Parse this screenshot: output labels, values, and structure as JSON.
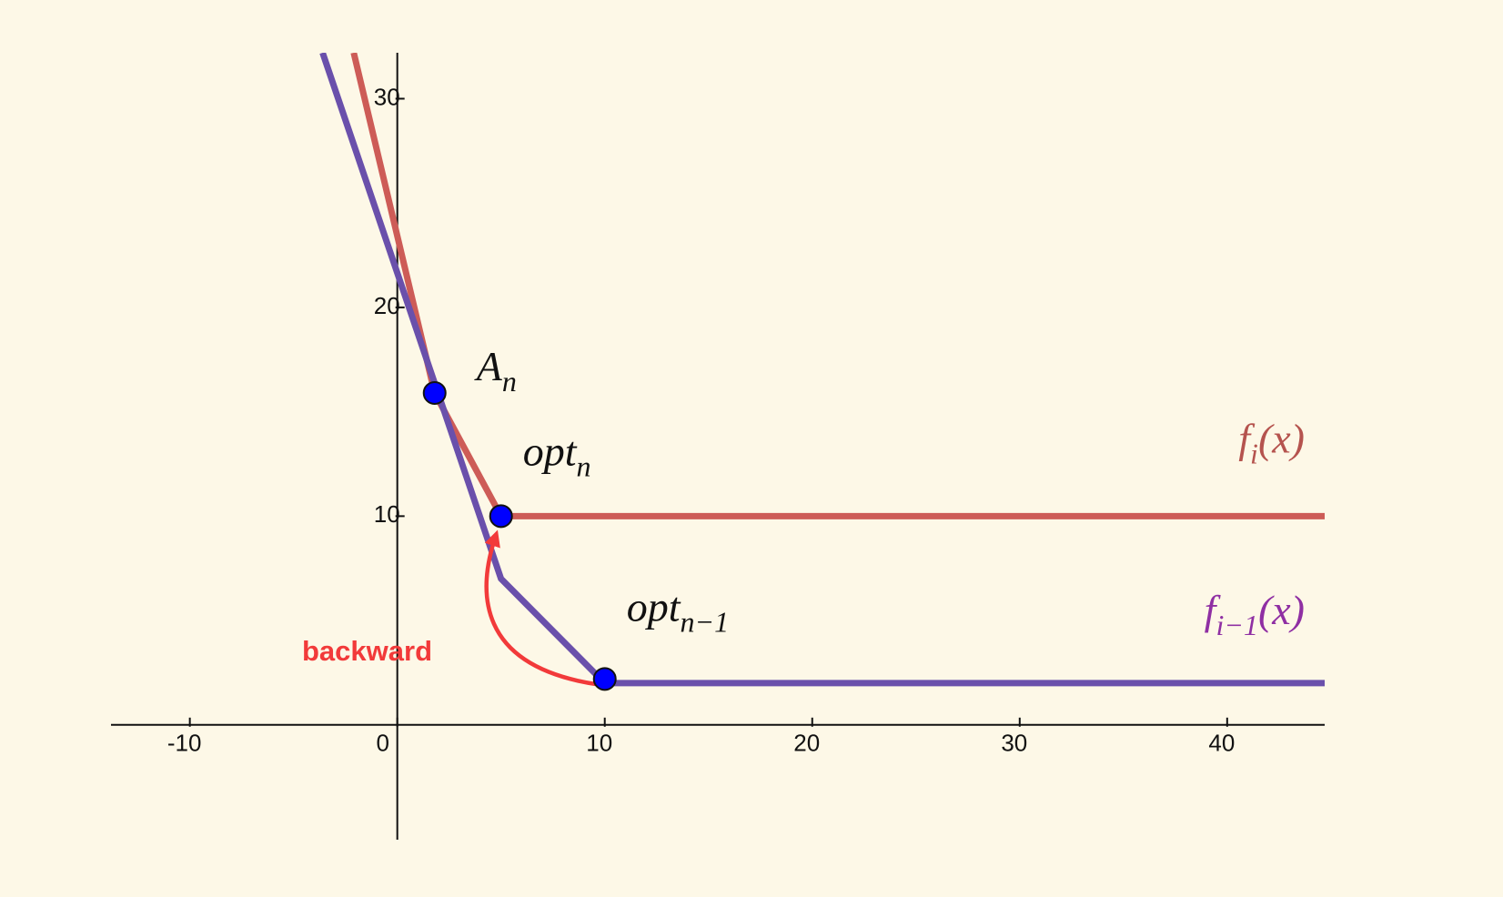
{
  "chart_data": {
    "type": "line",
    "xlim": [
      -13.8,
      44.7
    ],
    "ylim": [
      -5.5,
      32.2
    ],
    "xticks": [
      -10,
      0,
      10,
      20,
      30,
      40
    ],
    "yticks": [
      10,
      20,
      30
    ],
    "series": [
      {
        "name": "f",
        "sub": "i",
        "suffix": "(x)",
        "color": "#cd5c57",
        "label_color": "#b5534e",
        "x": [
          -2.1,
          1.8,
          5,
          44.7
        ],
        "values": [
          32.2,
          15.9,
          10,
          10
        ]
      },
      {
        "name": "f",
        "sub": "i−1",
        "suffix": "(x)",
        "color": "#6a50ab",
        "label_color": "#8f2fa3",
        "x": [
          -3.6,
          5,
          10,
          44.7
        ],
        "values": [
          32.2,
          7,
          2,
          2
        ]
      }
    ],
    "points": [
      {
        "label": "A",
        "sub": "n",
        "x": 1.8,
        "y": 15.9,
        "color": "#0000ff"
      },
      {
        "label": "opt",
        "sub": "n",
        "x": 5,
        "y": 10,
        "color": "#0000ff"
      },
      {
        "label": "opt",
        "sub": "n−1",
        "x": 10,
        "y": 2.2,
        "color": "#0000ff"
      }
    ],
    "annotation": {
      "text": "backward",
      "color": "#f23a3a"
    }
  }
}
